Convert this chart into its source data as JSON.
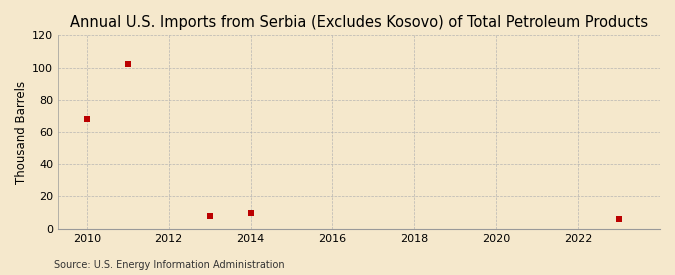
{
  "title": "Annual U.S. Imports from Serbia (Excludes Kosovo) of Total Petroleum Products",
  "ylabel": "Thousand Barrels",
  "source": "Source: U.S. Energy Information Administration",
  "background_color": "#f5e8cc",
  "plot_background_color": "#f5e8cc",
  "grid_color": "#b0b0b0",
  "marker_color": "#bb0000",
  "data_years": [
    2010,
    2011,
    2013,
    2014,
    2023
  ],
  "data_values": [
    68,
    102,
    8,
    10,
    6
  ],
  "xlim": [
    2009.3,
    2024.0
  ],
  "ylim": [
    0,
    120
  ],
  "yticks": [
    0,
    20,
    40,
    60,
    80,
    100,
    120
  ],
  "xticks": [
    2010,
    2012,
    2014,
    2016,
    2018,
    2020,
    2022
  ],
  "title_fontsize": 10.5,
  "axis_fontsize": 8.5,
  "tick_fontsize": 8,
  "source_fontsize": 7,
  "marker_size": 5
}
